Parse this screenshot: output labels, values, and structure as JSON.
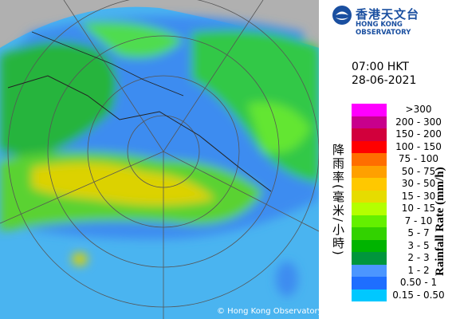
{
  "header": {
    "logo_chinese": "香港天文台",
    "logo_english": "HONG KONG OBSERVATORY"
  },
  "timestamp": {
    "time": "07:00 HKT",
    "date": "28-06-2021"
  },
  "legend": {
    "title_chinese": "降雨率(毫米/小時)",
    "title_english": "Rainfall Rate (mm/h)",
    "items": [
      {
        "label": ">300",
        "color": "#ff00ff"
      },
      {
        "label": "200 - 300",
        "color": "#c8008c"
      },
      {
        "label": "150 - 200",
        "color": "#d2003c"
      },
      {
        "label": "100 - 150",
        "color": "#ff0000"
      },
      {
        "label": "75 - 100",
        "color": "#ff6e00"
      },
      {
        "label": "50 - 75",
        "color": "#ffa000"
      },
      {
        "label": "30 - 50",
        "color": "#ffc800"
      },
      {
        "label": "15 - 30",
        "color": "#e6dc00"
      },
      {
        "label": "10 - 15",
        "color": "#b4ff00"
      },
      {
        "label": "7 - 10",
        "color": "#64f000"
      },
      {
        "label": "5 - 7",
        "color": "#32d200"
      },
      {
        "label": "3 - 5",
        "color": "#00b400"
      },
      {
        "label": "2 - 3",
        "color": "#00963c"
      },
      {
        "label": "1 - 2",
        "color": "#4b96ff"
      },
      {
        "label": "0.50 - 1",
        "color": "#1e6eff"
      },
      {
        "label": "0.15 - 0.50",
        "color": "#00c8ff"
      }
    ]
  },
  "map": {
    "copyright": "© Hong Kong Observatory"
  }
}
